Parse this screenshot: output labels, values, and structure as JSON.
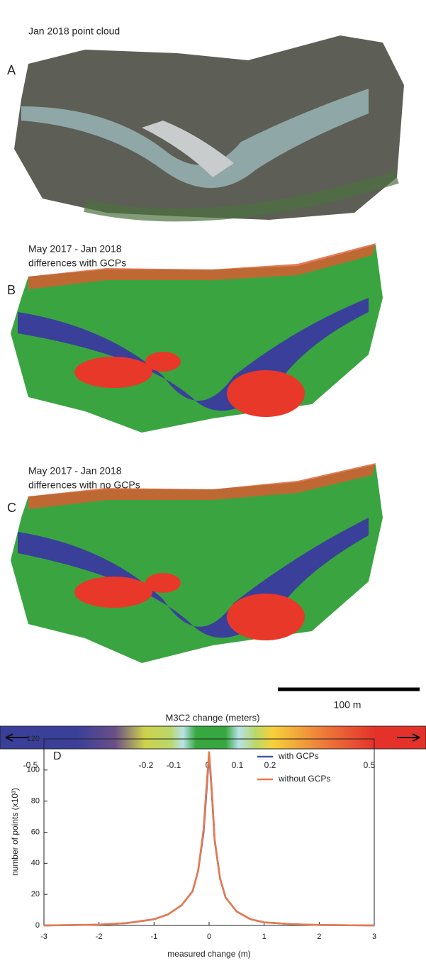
{
  "panels": [
    {
      "letter": "A",
      "title": [
        "Jan 2018 point cloud"
      ]
    },
    {
      "letter": "B",
      "title": [
        "May 2017 - Jan 2018",
        "differences with GCPs"
      ]
    },
    {
      "letter": "C",
      "title": [
        "May 2017 - Jan 2018",
        "differences with no GCPs"
      ]
    }
  ],
  "scale_bar": {
    "label": "100 m"
  },
  "colorbar": {
    "title": "M3C2 change (meters)",
    "ticks": [
      -0.5,
      -0.2,
      -0.1,
      0,
      0.1,
      0.2,
      0.5
    ]
  },
  "chart_data": {
    "type": "line",
    "panel": "D",
    "xlabel": "measured change (m)",
    "ylabel": "number of points (x10³)",
    "x": [
      -3,
      -2,
      -1.5,
      -1,
      -0.75,
      -0.5,
      -0.3,
      -0.2,
      -0.1,
      -0.05,
      0,
      0.05,
      0.1,
      0.2,
      0.3,
      0.5,
      0.75,
      1,
      1.5,
      2,
      3
    ],
    "series": [
      {
        "name": "with GCPs",
        "color": "#3f5aa8",
        "values": [
          0,
          0.5,
          1.5,
          4,
          7,
          13,
          22,
          35,
          60,
          85,
          110,
          85,
          55,
          30,
          18,
          9,
          4,
          2,
          0.8,
          0.3,
          0
        ]
      },
      {
        "name": "without GCPs",
        "color": "#e8794b",
        "values": [
          0,
          0.5,
          1.5,
          4,
          7,
          13,
          22,
          35,
          62,
          88,
          112,
          87,
          56,
          30,
          18,
          9,
          4,
          2,
          0.8,
          0.3,
          0
        ]
      }
    ],
    "xlim": [
      -3,
      3
    ],
    "xticks": [
      -3,
      -2,
      -1,
      0,
      1,
      2,
      3
    ],
    "ylim": [
      0,
      120
    ],
    "yticks": [
      0,
      20,
      40,
      60,
      80,
      100,
      120
    ],
    "legend": "upper right"
  }
}
